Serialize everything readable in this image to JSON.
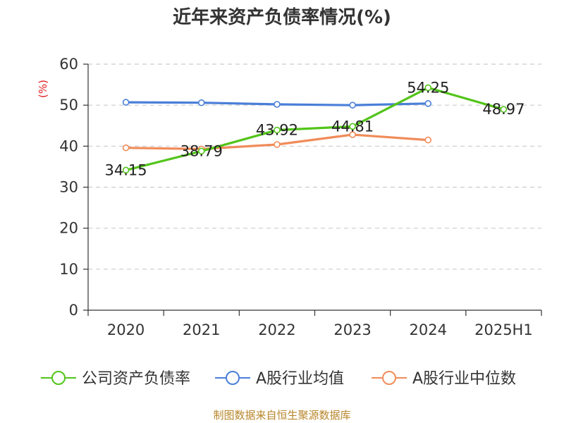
{
  "colors": {
    "axis": "#333333",
    "grid": "#cccccc",
    "series": [
      "#52c41a",
      "#4a7fd8",
      "#f08c5a"
    ]
  },
  "source_note": "制图数据来自恒生聚源数据库",
  "chart_data": {
    "type": "line",
    "title": "近年来资产负债率情况(%)",
    "ylabel": "(%)",
    "xlabel": "",
    "categories": [
      "2020",
      "2021",
      "2022",
      "2023",
      "2024",
      "2025H1"
    ],
    "ylim": [
      0,
      60
    ],
    "yticks": [
      0,
      10,
      20,
      30,
      40,
      50,
      60
    ],
    "grid": true,
    "grid_style": "dashed-horizontal",
    "legend_position": "bottom",
    "series": [
      {
        "name": "公司资产负债率",
        "values": [
          34.15,
          38.79,
          43.92,
          44.81,
          54.25,
          48.97
        ],
        "data_labels": [
          "34.15",
          "38.79",
          "43.92",
          "44.81",
          "54.25",
          "48.97"
        ]
      },
      {
        "name": "A股行业均值",
        "values": [
          50.7,
          50.6,
          50.2,
          50.0,
          50.4,
          null
        ]
      },
      {
        "name": "A股行业中位数",
        "values": [
          39.6,
          39.3,
          40.4,
          42.8,
          41.5,
          null
        ]
      }
    ]
  }
}
